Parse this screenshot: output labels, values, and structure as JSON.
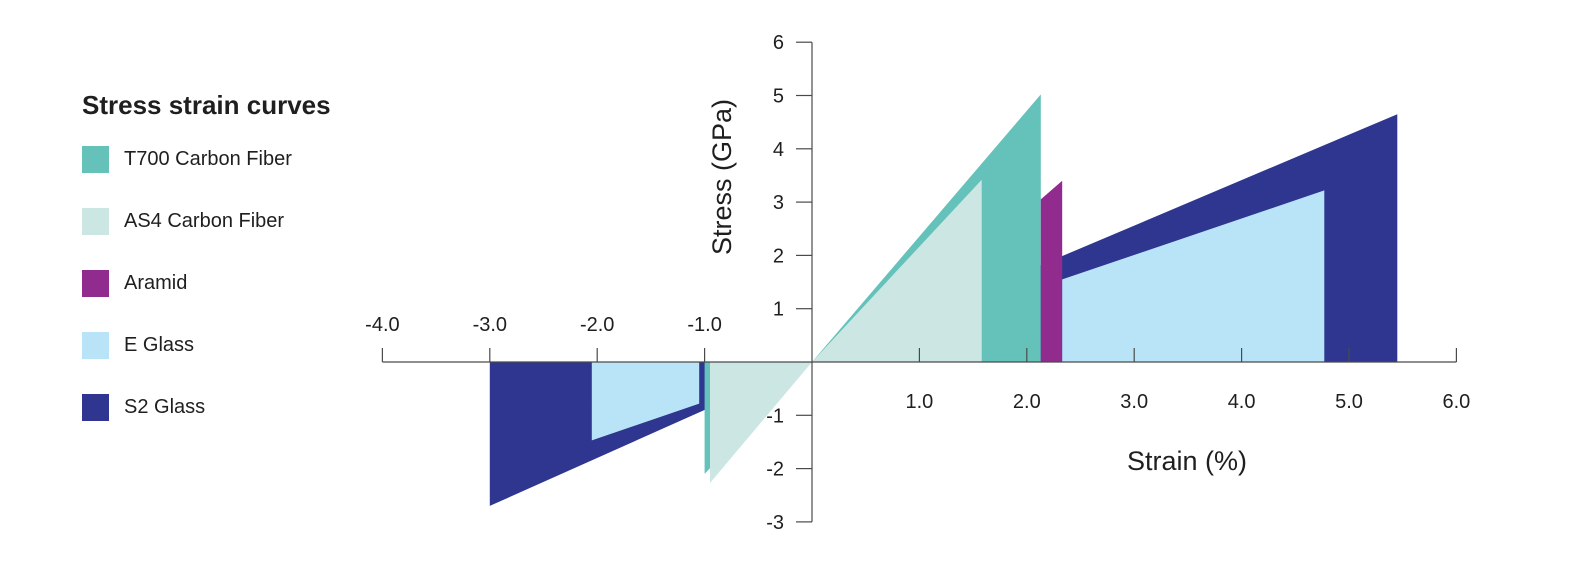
{
  "chart_data": {
    "type": "area",
    "title": "Stress strain curves",
    "xlabel": "Strain (%)",
    "ylabel": "Stress (GPa)",
    "xlim": [
      -4.0,
      6.0
    ],
    "ylim": [
      -3,
      6
    ],
    "x_ticks": [
      {
        "value": -4.0,
        "label": "-4.0"
      },
      {
        "value": -3.0,
        "label": "-3.0"
      },
      {
        "value": -2.0,
        "label": "-2.0"
      },
      {
        "value": -1.0,
        "label": "-1.0"
      },
      {
        "value": 1.0,
        "label": "1.0"
      },
      {
        "value": 2.0,
        "label": "2.0"
      },
      {
        "value": 3.0,
        "label": "3.0"
      },
      {
        "value": 4.0,
        "label": "4.0"
      },
      {
        "value": 5.0,
        "label": "5.0"
      },
      {
        "value": 6.0,
        "label": "6.0"
      }
    ],
    "y_ticks": [
      {
        "value": 6,
        "label": "6"
      },
      {
        "value": 5,
        "label": "5"
      },
      {
        "value": 4,
        "label": "4"
      },
      {
        "value": 3,
        "label": "3"
      },
      {
        "value": 2,
        "label": "2"
      },
      {
        "value": 1,
        "label": "1"
      },
      {
        "value": -1,
        "label": "-1"
      },
      {
        "value": -2,
        "label": "-2"
      },
      {
        "value": -3,
        "label": "-3"
      }
    ],
    "legend_position": "left",
    "grid": false,
    "series": [
      {
        "name": "S2 Glass",
        "color": "#2e368f",
        "points": [
          [
            0,
            0
          ],
          [
            5.45,
            4.65
          ],
          [
            5.45,
            0
          ],
          [
            -3.0,
            0
          ],
          [
            -3.0,
            -2.7
          ]
        ]
      },
      {
        "name": "T700 Carbon Fiber",
        "color": "#64c2bb",
        "points": [
          [
            0,
            0
          ],
          [
            2.13,
            5.02
          ],
          [
            2.13,
            0
          ],
          [
            -1.0,
            0
          ],
          [
            -1.0,
            -2.1
          ]
        ]
      },
      {
        "name": "Aramid",
        "color": "#922b8e",
        "points": [
          [
            2.13,
            0
          ],
          [
            2.13,
            3.05
          ],
          [
            2.33,
            3.4
          ],
          [
            2.33,
            0
          ]
        ]
      },
      {
        "name": "AS4 Carbon Fiber",
        "color": "#cce7e3",
        "points": [
          [
            0,
            0
          ],
          [
            1.58,
            3.42
          ],
          [
            1.58,
            0
          ],
          [
            -0.95,
            0
          ],
          [
            -0.95,
            -2.27
          ]
        ]
      },
      {
        "name": "E Glass",
        "color": "#b9e4f8",
        "points": [
          [
            2.33,
            0
          ],
          [
            2.33,
            1.55
          ],
          [
            4.77,
            3.22
          ],
          [
            4.77,
            0
          ],
          [
            -2.05,
            0
          ],
          [
            -2.05,
            -1.47
          ],
          [
            -1.05,
            -0.78
          ],
          [
            -1.05,
            0
          ]
        ]
      }
    ]
  },
  "legend": {
    "items": [
      {
        "label": "T700 Carbon Fiber",
        "color": "#64c2bb"
      },
      {
        "label": "AS4 Carbon Fiber",
        "color": "#cce7e3"
      },
      {
        "label": "Aramid",
        "color": "#922b8e"
      },
      {
        "label": "E Glass",
        "color": "#b9e4f8"
      },
      {
        "label": "S2 Glass",
        "color": "#2e368f"
      }
    ]
  }
}
